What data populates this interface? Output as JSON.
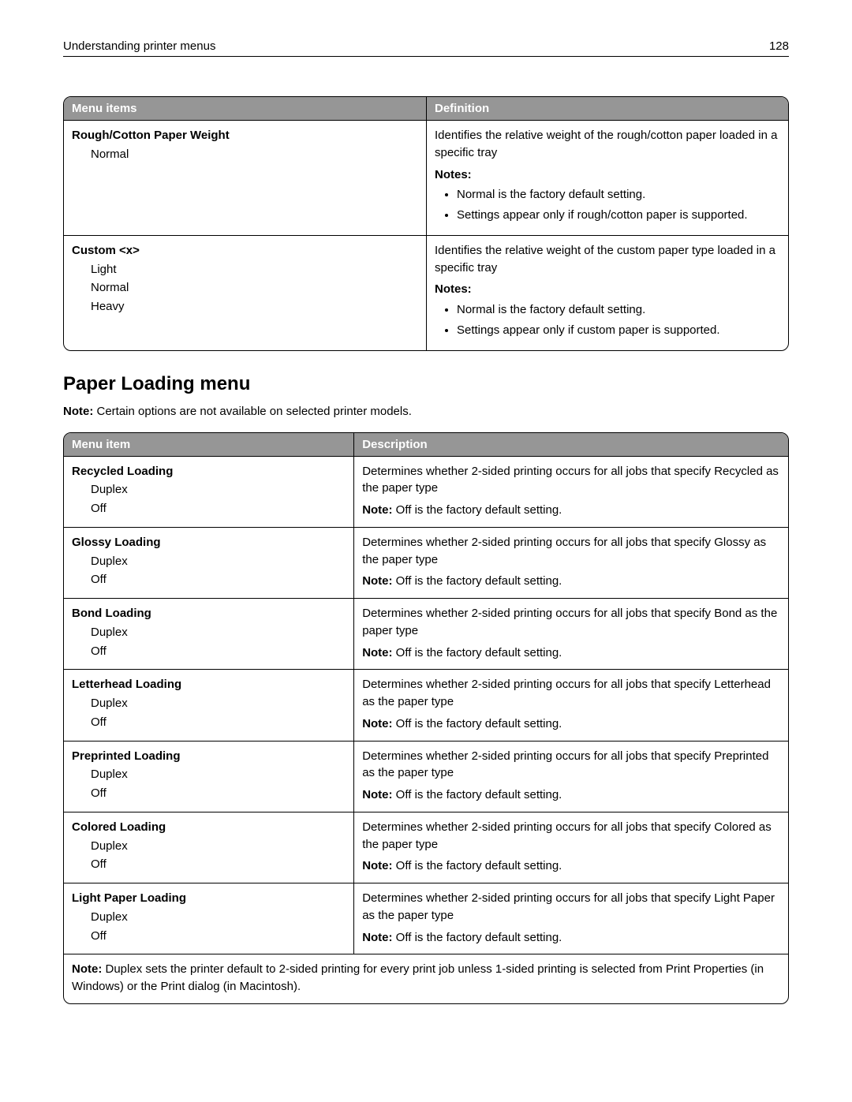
{
  "header": {
    "title": "Understanding printer menus",
    "page_number": "128"
  },
  "table1": {
    "columns": [
      "Menu items",
      "Definition"
    ],
    "rows": [
      {
        "title": "Rough/Cotton Paper Weight",
        "options": [
          "Normal"
        ],
        "def": "Identifies the relative weight of the rough/cotton paper loaded in a specific tray",
        "notes_label": "Notes:",
        "notes": [
          "Normal is the factory default setting.",
          "Settings appear only if rough/cotton paper is supported."
        ]
      },
      {
        "title": "Custom <x>",
        "options": [
          "Light",
          "Normal",
          "Heavy"
        ],
        "def": "Identifies the relative weight of the custom paper type loaded in a specific tray",
        "notes_label": "Notes:",
        "notes": [
          "Normal is the factory default setting.",
          "Settings appear only if custom paper is supported."
        ]
      }
    ]
  },
  "section": {
    "heading": "Paper Loading menu",
    "note_label": "Note:",
    "note_text": " Certain options are not available on selected printer models."
  },
  "table2": {
    "columns": [
      "Menu item",
      "Description"
    ],
    "rows": [
      {
        "title": "Recycled Loading",
        "options": [
          "Duplex",
          "Off"
        ],
        "desc": "Determines whether 2‑sided printing occurs for all jobs that specify Recycled as the paper type",
        "note_label": "Note:",
        "note_text": " Off is the factory default setting."
      },
      {
        "title": "Glossy Loading",
        "options": [
          "Duplex",
          "Off"
        ],
        "desc": "Determines whether 2‑sided printing occurs for all jobs that specify Glossy as the paper type",
        "note_label": "Note:",
        "note_text": " Off is the factory default setting."
      },
      {
        "title": "Bond Loading",
        "options": [
          "Duplex",
          "Off"
        ],
        "desc": "Determines whether 2‑sided printing occurs for all jobs that specify Bond as the paper type",
        "note_label": "Note:",
        "note_text": " Off is the factory default setting."
      },
      {
        "title": "Letterhead Loading",
        "options": [
          "Duplex",
          "Off"
        ],
        "desc": "Determines whether 2‑sided printing occurs for all jobs that specify Letterhead as the paper type",
        "note_label": "Note:",
        "note_text": " Off is the factory default setting."
      },
      {
        "title": "Preprinted Loading",
        "options": [
          "Duplex",
          "Off"
        ],
        "desc": "Determines whether 2‑sided printing occurs for all jobs that specify Preprinted as the paper type",
        "note_label": "Note:",
        "note_text": " Off is the factory default setting."
      },
      {
        "title": "Colored Loading",
        "options": [
          "Duplex",
          "Off"
        ],
        "desc": "Determines whether 2‑sided printing occurs for all jobs that specify Colored as the paper type",
        "note_label": "Note:",
        "note_text": " Off is the factory default setting."
      },
      {
        "title": "Light Paper Loading",
        "options": [
          "Duplex",
          "Off"
        ],
        "desc": "Determines whether 2‑sided printing occurs for all jobs that specify Light Paper as the paper type",
        "note_label": "Note:",
        "note_text": " Off is the factory default setting."
      }
    ],
    "footer": {
      "label": "Note:",
      "text": " Duplex sets the printer default to 2‑sided printing for every print job unless 1‑sided printing is selected from Print Properties (in Windows) or the Print dialog (in Macintosh)."
    }
  }
}
